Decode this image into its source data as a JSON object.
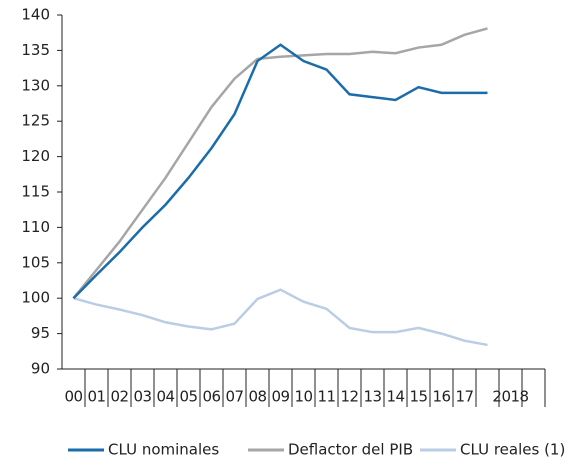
{
  "chart_data": {
    "type": "line",
    "categories": [
      "00",
      "01",
      "02",
      "03",
      "04",
      "05",
      "06",
      "07",
      "08",
      "09",
      "10",
      "11",
      "12",
      "13",
      "14",
      "15",
      "16",
      "17",
      null,
      "2018",
      null
    ],
    "series": [
      {
        "name": "CLU nominales",
        "color": "#1b6cab",
        "values": [
          100,
          103.3,
          106.5,
          110,
          113.2,
          117,
          121.2,
          126,
          133.5,
          135.8,
          133.5,
          132.3,
          128.8,
          128.4,
          128,
          129.8,
          129,
          129,
          129,
          null,
          null
        ]
      },
      {
        "name": "Deflactor del PIB",
        "color": "#a6a6a6",
        "values": [
          100,
          104,
          108,
          112.5,
          117,
          122,
          127,
          131,
          133.8,
          134.1,
          134.3,
          134.5,
          134.5,
          134.8,
          134.6,
          135.4,
          135.8,
          137.2,
          138.1,
          null,
          null
        ]
      },
      {
        "name": "CLU reales (1)",
        "color": "#b9cde5",
        "values": [
          100,
          99.1,
          98.4,
          97.6,
          96.6,
          96,
          95.6,
          96.4,
          99.9,
          101.2,
          99.5,
          98.5,
          95.8,
          95.2,
          95.2,
          95.8,
          95,
          94,
          93.4,
          null,
          null
        ]
      }
    ],
    "ylim": [
      90,
      140
    ],
    "yticks": [
      90,
      95,
      100,
      105,
      110,
      115,
      120,
      125,
      130,
      135,
      140
    ],
    "grid": false,
    "legend": "bottom"
  }
}
